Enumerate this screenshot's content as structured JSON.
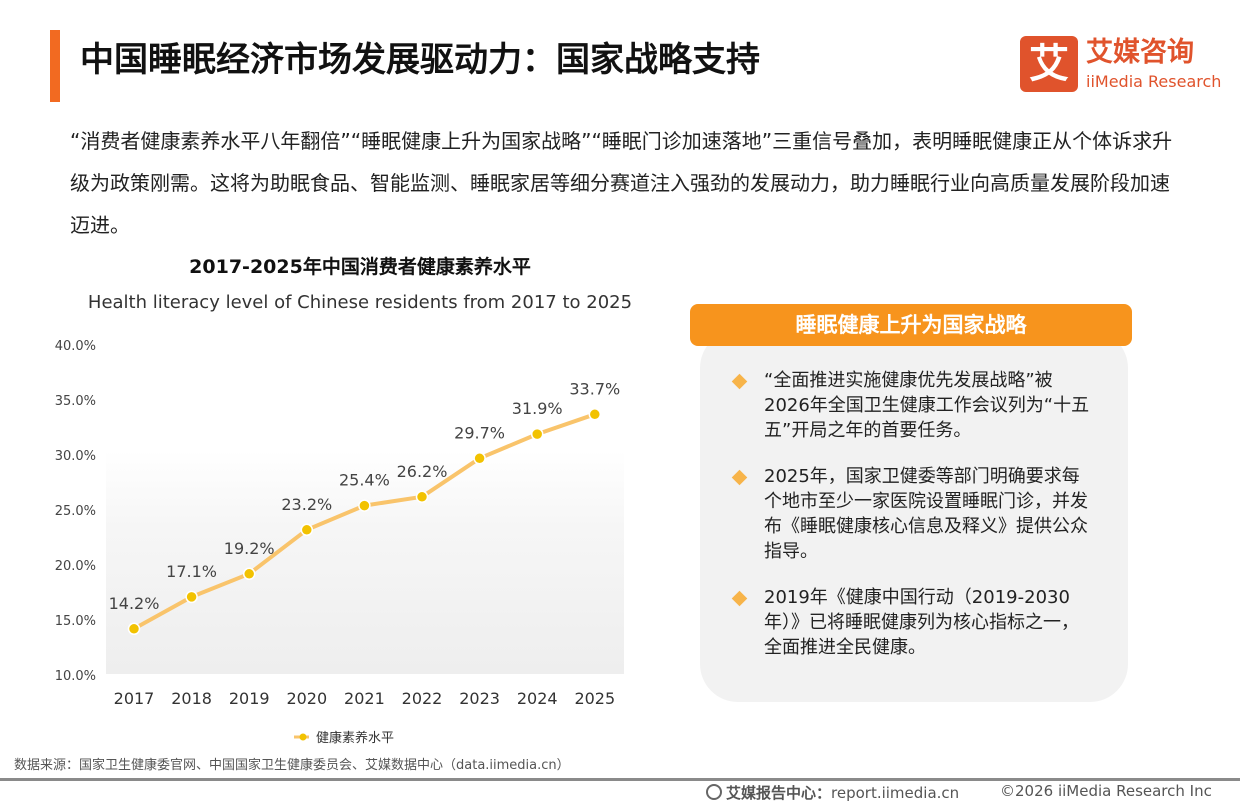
{
  "header": {
    "title": "中国睡眠经济市场发展驱动力：国家战略支持",
    "logo_mark": "艾",
    "logo_cn": "艾媒咨询",
    "logo_en": "iiMedia Research"
  },
  "intro": "“消费者健康素养水平八年翻倍”“睡眠健康上升为国家战略”“睡眠门诊加速落地”三重信号叠加，表明睡眠健康正从个体诉求升级为政策刚需。这将为助眠食品、智能监测、睡眠家居等细分赛道注入强劲的发展动力，助力睡眠行业向高质量发展阶段加速迈进。",
  "chart_data": {
    "type": "line",
    "title": "2017-2025年中国消费者健康素养水平",
    "subtitle": "Health literacy level of Chinese residents from 2017 to 2025",
    "categories": [
      "2017",
      "2018",
      "2019",
      "2020",
      "2021",
      "2022",
      "2023",
      "2024",
      "2025"
    ],
    "series": [
      {
        "name": "健康素养水平",
        "values": [
          14.2,
          17.1,
          19.2,
          23.2,
          25.4,
          26.2,
          29.7,
          31.9,
          33.7
        ],
        "labels": [
          "14.2%",
          "17.1%",
          "19.2%",
          "23.2%",
          "25.4%",
          "26.2%",
          "29.7%",
          "31.9%",
          "33.7%"
        ]
      }
    ],
    "ylim": [
      10,
      40
    ],
    "yticks": [
      10,
      15,
      20,
      25,
      30,
      35,
      40
    ],
    "ytick_labels": [
      "10.0%",
      "15.0%",
      "20.0%",
      "25.0%",
      "30.0%",
      "35.0%",
      "40.0%"
    ],
    "legend": "bottom",
    "line_color": "#f9c46b",
    "marker_color": "#f2c200"
  },
  "panel": {
    "header": "睡眠健康上升为国家战略",
    "bullets": [
      "“全面推进实施健康优先发展战略”被2026年全国卫生健康工作会议列为“十五五”开局之年的首要任务。",
      "2025年，国家卫健委等部门明确要求每个地市至少一家医院设置睡眠门诊，并发布《睡眠健康核心信息及释义》提供公众指导。",
      "2019年《健康中国行动（2019-2030年）》已将睡眠健康列为核心指标之一，全面推进全民健康。"
    ]
  },
  "footer": {
    "source": "数据来源：国家卫生健康委官网、中国国家卫生健康委员会、艾媒数据中心（data.iimedia.cn）",
    "report_label": "艾媒报告中心：",
    "report_url": "report.iimedia.cn",
    "copyright": "©2026  iiMedia Research Inc"
  }
}
